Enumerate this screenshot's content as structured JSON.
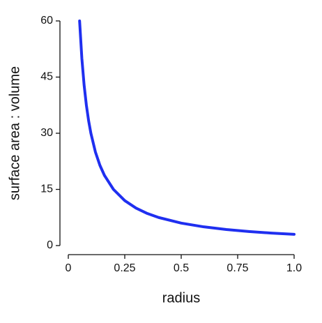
{
  "chart_data": {
    "type": "line",
    "xlabel": "radius",
    "ylabel": "surface area : volume",
    "x": [
      0.05,
      0.06,
      0.07,
      0.08,
      0.09,
      0.1,
      0.12,
      0.14,
      0.16,
      0.2,
      0.25,
      0.3,
      0.35,
      0.4,
      0.5,
      0.6,
      0.7,
      0.8,
      0.9,
      1.0
    ],
    "series": [
      {
        "color": "#1f2ff0",
        "values": [
          60,
          50,
          42.86,
          37.5,
          33.33,
          30,
          25,
          21.43,
          18.75,
          15,
          12,
          10,
          8.57,
          7.5,
          6,
          5,
          4.29,
          3.75,
          3.33,
          3
        ]
      }
    ],
    "xlim": [
      0,
      1
    ],
    "xticks": [
      0,
      0.25,
      0.5,
      0.75,
      {
        "value": 1,
        "label": "1.0"
      }
    ],
    "ylim": [
      0,
      60
    ],
    "yticks": [
      0,
      15,
      30,
      45,
      60
    ]
  }
}
